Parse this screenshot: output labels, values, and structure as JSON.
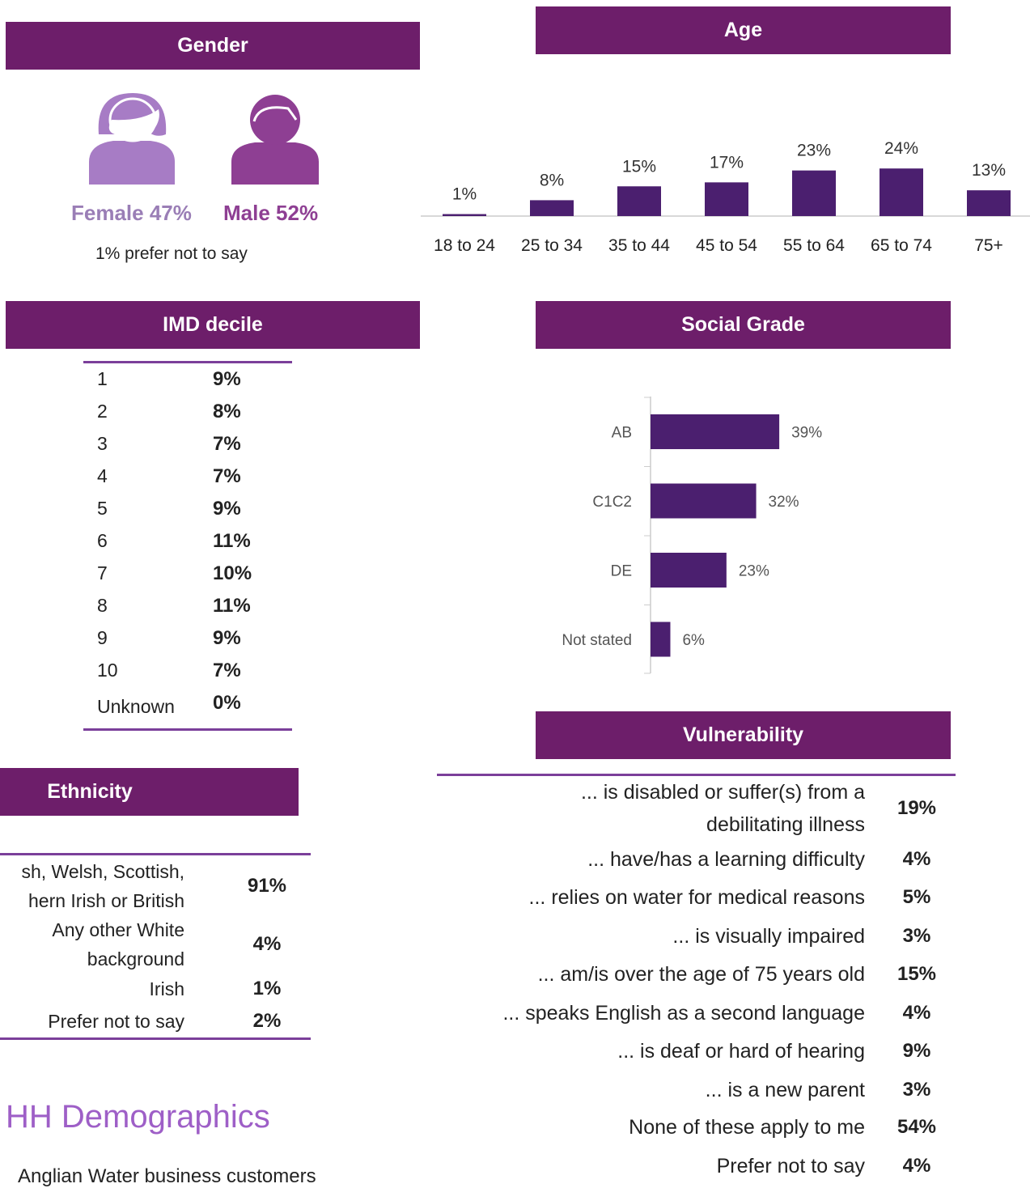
{
  "gender": {
    "title": "Gender",
    "items": [
      "Female 47%",
      "Male 52%"
    ],
    "note": "1% prefer not to say"
  },
  "imd": {
    "title": "IMD decile",
    "rows": [
      [
        "1",
        "9%"
      ],
      [
        "2",
        "8%"
      ],
      [
        "3",
        "7%"
      ],
      [
        "4",
        "7%"
      ],
      [
        "5",
        "9%"
      ],
      [
        "6",
        "11%"
      ],
      [
        "7",
        "10%"
      ],
      [
        "8",
        "11%"
      ],
      [
        "9",
        "9%"
      ],
      [
        "10",
        "7%"
      ],
      [
        "Unknown",
        "0%"
      ]
    ]
  },
  "ethnicity": {
    "title": "Ethnicity",
    "rows": [
      [
        "sh, Welsh, Scottish,\nhern Irish or British",
        "91%"
      ],
      [
        "Any other White\nbackground",
        "4%"
      ],
      [
        "Irish",
        "1%"
      ],
      [
        "Prefer not to say",
        "2%"
      ]
    ]
  },
  "vulnerability": {
    "title": "Vulnerability",
    "rows": [
      [
        "... is disabled or suffer(s) from a\ndebilitating illness",
        "19%"
      ],
      [
        "... have/has a learning difficulty",
        "4%"
      ],
      [
        "... relies on water for medical reasons",
        "5%"
      ],
      [
        "... is visually impaired",
        "3%"
      ],
      [
        "... am/is over the age of 75 years old",
        "15%"
      ],
      [
        "... speaks English as a second language",
        "4%"
      ],
      [
        "... is deaf or hard of hearing",
        "9%"
      ],
      [
        "... is a new parent",
        "3%"
      ],
      [
        "None of these apply to me",
        "54%"
      ],
      [
        "Prefer not to say",
        "4%"
      ]
    ]
  },
  "heading": "HH Demographics",
  "footnote": "Anglian Water business customers",
  "chart_data": [
    {
      "type": "bar",
      "title": "Age",
      "categories": [
        "18 to 24",
        "25 to 34",
        "35 to 44",
        "45 to 54",
        "55 to 64",
        "65 to 74",
        "75+"
      ],
      "values": [
        1,
        8,
        15,
        17,
        23,
        24,
        13
      ],
      "value_labels": [
        "1%",
        "8%",
        "15%",
        "17%",
        "23%",
        "24%",
        "13%"
      ],
      "color": "#4b1f6f"
    },
    {
      "type": "barh",
      "title": "Social Grade",
      "categories": [
        "AB",
        "C1C2",
        "DE",
        "Not stated"
      ],
      "values": [
        39,
        32,
        23,
        6
      ],
      "value_labels": [
        "39%",
        "32%",
        "23%",
        "6%"
      ],
      "color": "#4b1f6f"
    }
  ]
}
